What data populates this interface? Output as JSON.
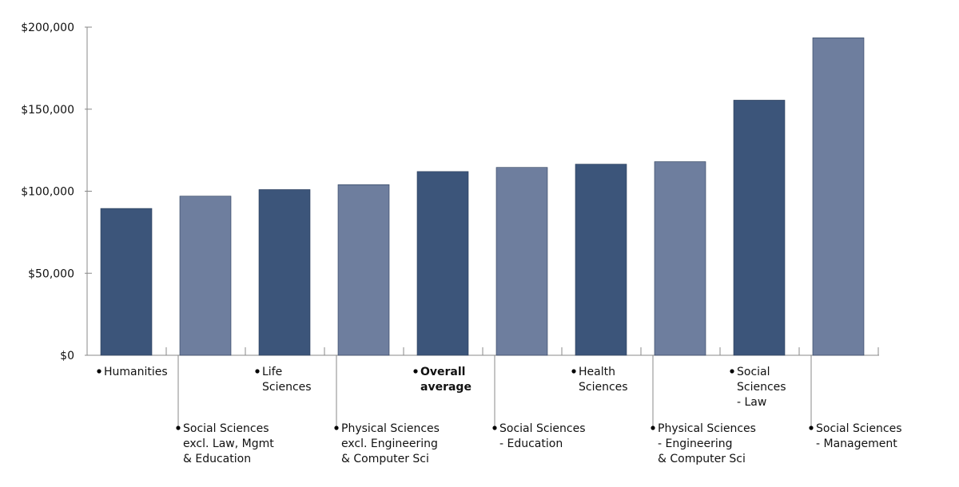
{
  "chart_data": {
    "type": "bar",
    "title": "",
    "xlabel": "",
    "ylabel": "",
    "ylim": [
      0,
      200000
    ],
    "yticks": [
      {
        "value": 0,
        "label": "$0"
      },
      {
        "value": 50000,
        "label": "$50,000"
      },
      {
        "value": 100000,
        "label": "$100,000"
      },
      {
        "value": 150000,
        "label": "$150,000"
      },
      {
        "value": 200000,
        "label": "$200,000"
      }
    ],
    "colors": {
      "dark": "#3c557a",
      "light": "#6e7e9e",
      "axis": "#888888",
      "text": "#111111"
    },
    "categories": [
      {
        "lines": [
          "Humanities"
        ],
        "value": 89500,
        "shade": "dark",
        "bold": false
      },
      {
        "lines": [
          "Social Sciences",
          "excl. Law, Mgmt",
          "& Education"
        ],
        "value": 97000,
        "shade": "light",
        "bold": false
      },
      {
        "lines": [
          "Life",
          "Sciences"
        ],
        "value": 101000,
        "shade": "dark",
        "bold": false
      },
      {
        "lines": [
          "Physical Sciences",
          "excl. Engineering",
          "& Computer Sci"
        ],
        "value": 104000,
        "shade": "light",
        "bold": false
      },
      {
        "lines": [
          "Overall",
          "average"
        ],
        "value": 112000,
        "shade": "dark",
        "bold": true
      },
      {
        "lines": [
          "Social Sciences",
          "- Education"
        ],
        "value": 114500,
        "shade": "light",
        "bold": false
      },
      {
        "lines": [
          "Health",
          "Sciences"
        ],
        "value": 116500,
        "shade": "dark",
        "bold": false
      },
      {
        "lines": [
          "Physical Sciences",
          "- Engineering",
          "& Computer Sci"
        ],
        "value": 118000,
        "shade": "light",
        "bold": false
      },
      {
        "lines": [
          "Social",
          "Sciences",
          "- Law"
        ],
        "value": 155500,
        "shade": "dark",
        "bold": false
      },
      {
        "lines": [
          "Social Sciences",
          "- Management"
        ],
        "value": 193500,
        "shade": "light",
        "bold": false
      }
    ]
  }
}
